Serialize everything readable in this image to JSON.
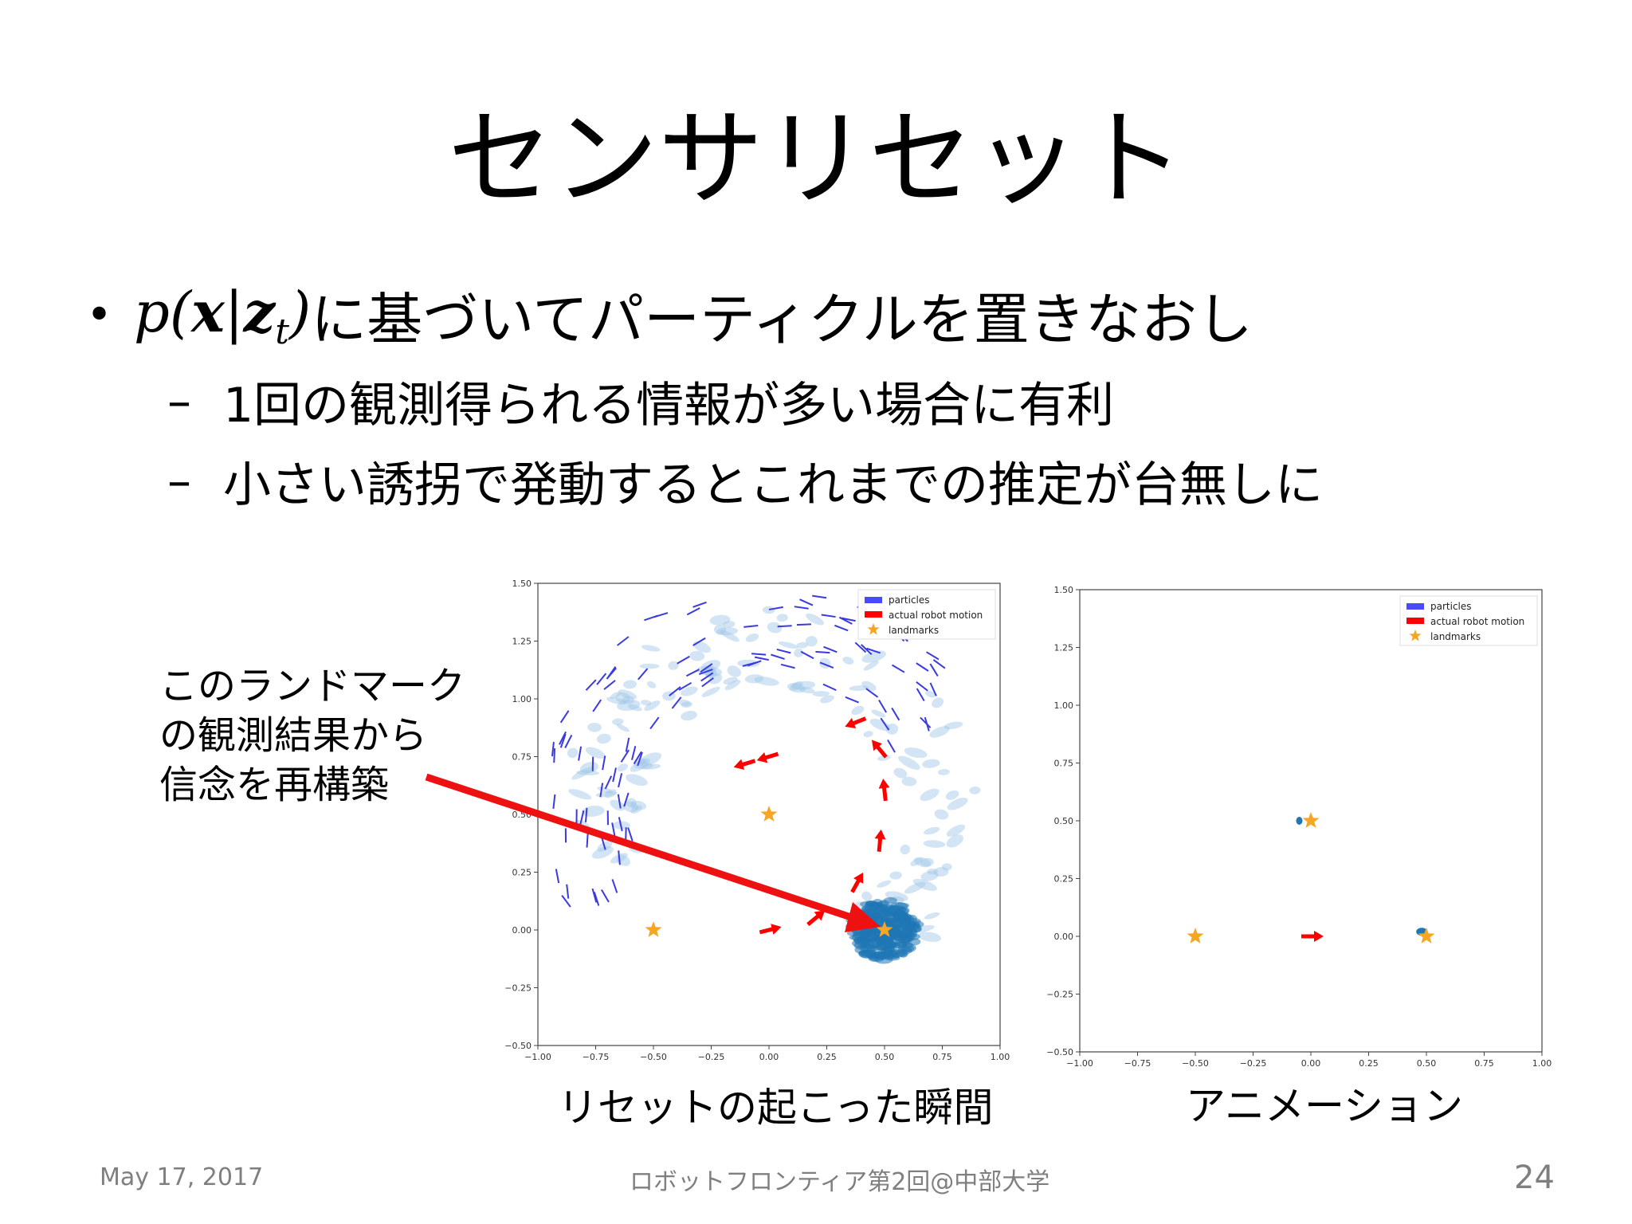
{
  "slide": {
    "title": "センサリセット",
    "bullet": {
      "formula_p": "p",
      "formula_x": "x",
      "formula_z": "z",
      "formula_t": "t",
      "text": "に基づいてパーティクルを置きなおし"
    },
    "sub_bullets": [
      {
        "dash": "–",
        "text": "1回の観測得られる情報が多い場合に有利"
      },
      {
        "dash": "–",
        "text": "小さい誘拐で発動するとこれまでの推定が台無しに"
      }
    ],
    "callout": [
      "このランドマーク",
      "の観測結果から",
      "信念を再構築"
    ],
    "captions": {
      "left": "リセットの起こった瞬間",
      "right": "アニメーション"
    },
    "footer": {
      "date": "May 17, 2017",
      "center": "ロボットフロンティア第2回@中部大学",
      "page": "24"
    }
  },
  "chart_data": [
    {
      "type": "scatter",
      "xlim": [
        -1.0,
        1.0
      ],
      "ylim": [
        -0.5,
        1.5
      ],
      "xticks": [
        "−1.00",
        "−0.75",
        "−0.50",
        "−0.25",
        "0.00",
        "0.25",
        "0.50",
        "0.75",
        "1.00"
      ],
      "yticks": [
        "−0.50",
        "−0.25",
        "0.00",
        "0.25",
        "0.50",
        "0.75",
        "1.00",
        "1.25",
        "1.50"
      ],
      "legend": [
        "particles",
        "actual robot motion",
        "landmarks"
      ],
      "legend_position": "top-right",
      "landmarks": [
        [
          0.0,
          0.5
        ],
        [
          -0.5,
          0.0
        ],
        [
          0.5,
          0.0
        ]
      ],
      "robot_motion": [
        [
          0.0,
          0.0
        ],
        [
          0.2,
          0.05
        ],
        [
          0.38,
          0.2
        ],
        [
          0.48,
          0.38
        ],
        [
          0.5,
          0.6
        ],
        [
          0.48,
          0.78
        ],
        [
          0.38,
          0.9
        ],
        [
          0.0,
          0.75
        ],
        [
          -0.1,
          0.72
        ]
      ],
      "particle_cluster_center": [
        0.5,
        0.0
      ],
      "colors": {
        "particles": "#4a4aff",
        "robot_motion": "#ff0000",
        "landmarks": "#f5a623",
        "cluster": "#1f77b4"
      }
    },
    {
      "type": "scatter",
      "xlim": [
        -1.0,
        1.0
      ],
      "ylim": [
        -0.5,
        1.5
      ],
      "xticks": [
        "−1.00",
        "−0.75",
        "−0.50",
        "−0.25",
        "0.00",
        "0.25",
        "0.50",
        "0.75",
        "1.00"
      ],
      "yticks": [
        "−0.50",
        "−0.25",
        "0.00",
        "0.25",
        "0.50",
        "0.75",
        "1.00",
        "1.25",
        "1.50"
      ],
      "legend": [
        "particles",
        "actual robot motion",
        "landmarks"
      ],
      "legend_position": "top-right",
      "landmarks": [
        [
          0.0,
          0.5
        ],
        [
          -0.5,
          0.0
        ],
        [
          0.5,
          0.0
        ]
      ],
      "robot_motion": [
        [
          0.0,
          0.0
        ]
      ],
      "particle_clusters": [
        [
          -0.05,
          0.5
        ],
        [
          0.48,
          0.02
        ]
      ],
      "colors": {
        "particles": "#4a4aff",
        "robot_motion": "#ff0000",
        "landmarks": "#f5a623",
        "cluster": "#1f77b4"
      }
    }
  ]
}
